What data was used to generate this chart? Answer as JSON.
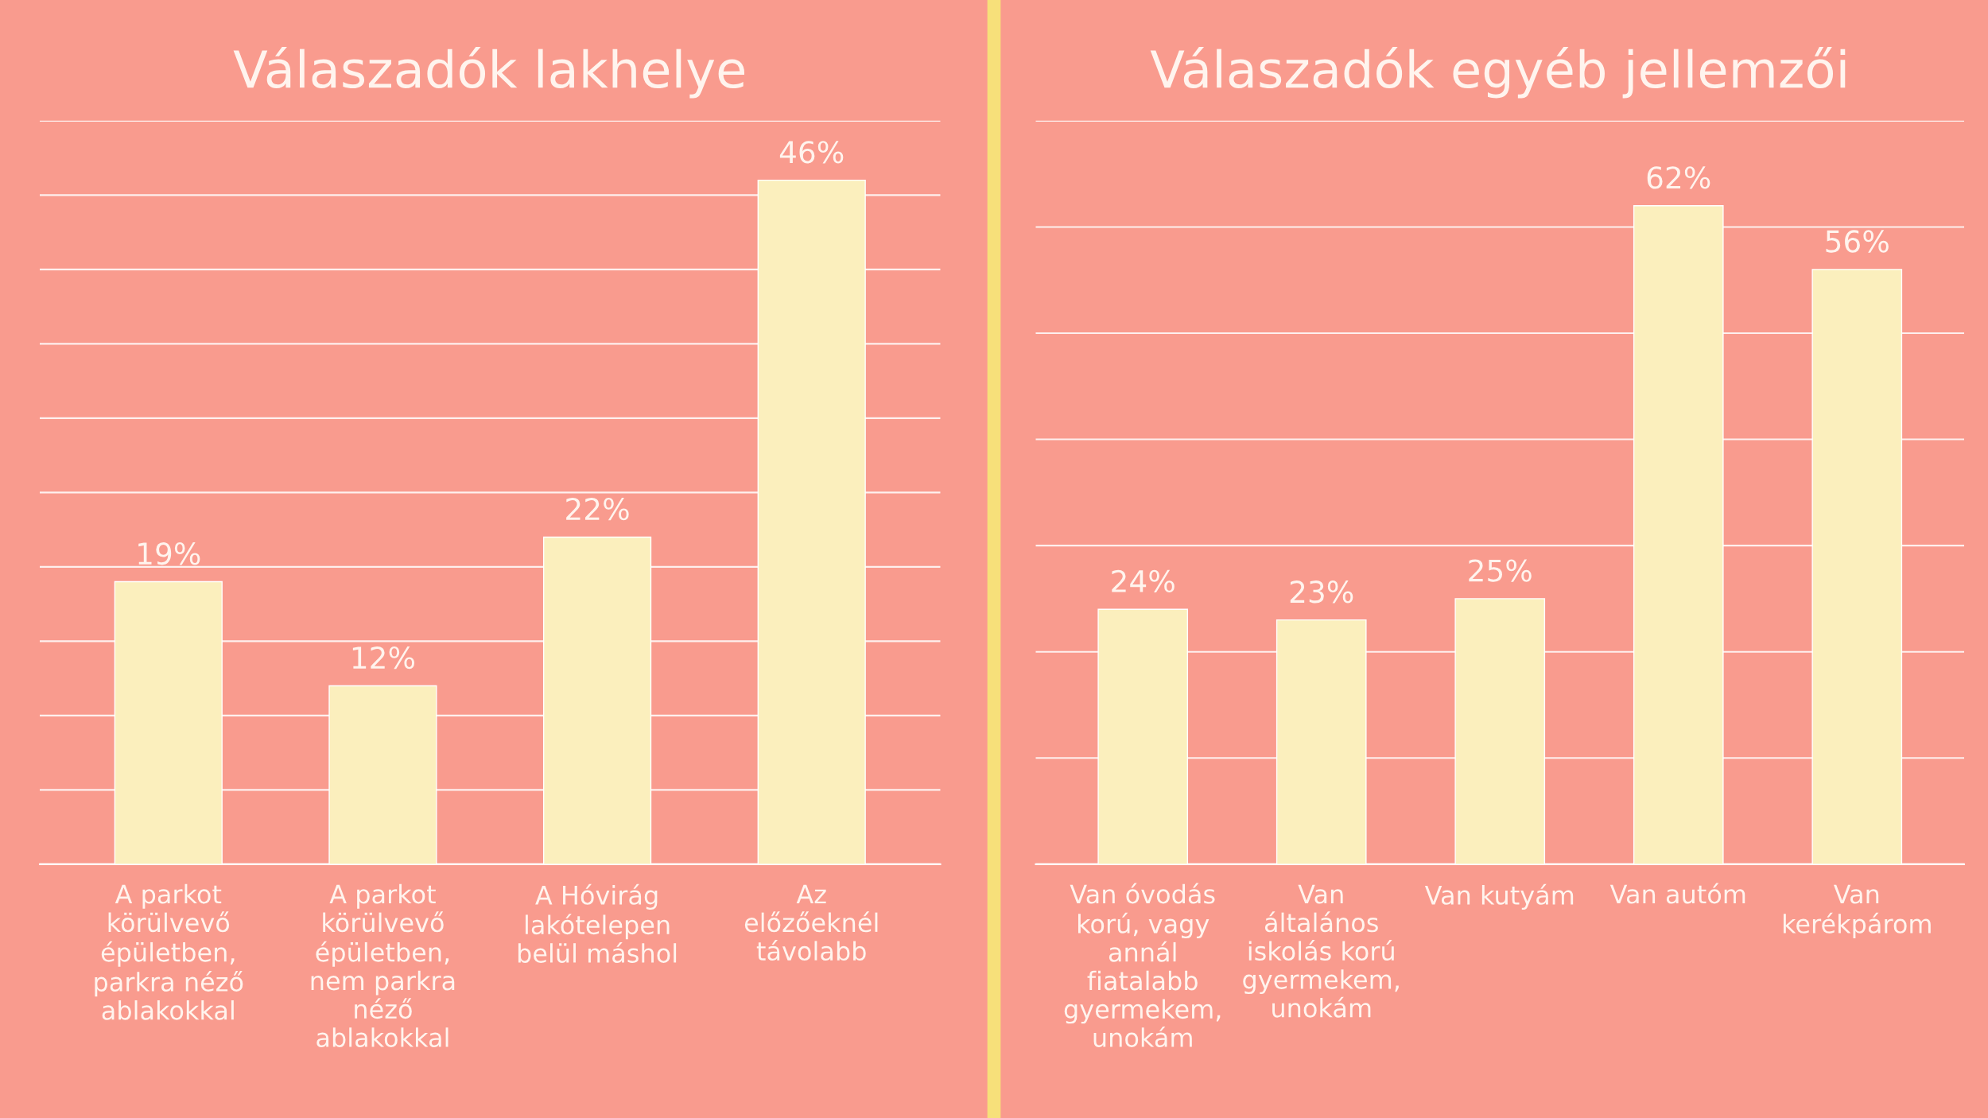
{
  "chart_data": [
    {
      "type": "bar",
      "title": "Válaszadók lakhelye",
      "categories": [
        "A parkot körülvevő épületben, parkra néző ablakokkal",
        "A parkot körülvevő épületben, nem parkra néző ablakokkal",
        "A Hóvirág lakótelepen belül máshol",
        "Az előzőeknél távolabb"
      ],
      "values": [
        19,
        12,
        22,
        46
      ],
      "value_labels": [
        "19%",
        "12%",
        "22%",
        "46%"
      ],
      "color": "#fbefbd",
      "ylim": [
        0,
        50
      ],
      "yticks": [
        {
          "value": 0,
          "label": null
        },
        {
          "value": 5,
          "label": null
        },
        {
          "value": 10,
          "label": null
        },
        {
          "value": 15,
          "label": null
        },
        {
          "value": 20,
          "label": null
        },
        {
          "value": 25,
          "label": null
        },
        {
          "value": 30,
          "label": null
        },
        {
          "value": 35,
          "label": null
        },
        {
          "value": 40,
          "label": null
        },
        {
          "value": 45,
          "label": null
        },
        {
          "value": 50,
          "label": null
        }
      ],
      "tick_labels": "x",
      "grid": "y",
      "legend": false
    },
    {
      "type": "bar",
      "title": "Válaszadók egyéb jellemzői",
      "categories": [
        "Van óvodás korú, vagy annál fiatalabb gyermekem, unokám",
        "Van általános iskolás korú gyermekem, unokám",
        "Van kutyám",
        "Van autóm",
        "Van kerékpárom"
      ],
      "values": [
        24,
        23,
        25,
        62,
        56
      ],
      "value_labels": [
        "24%",
        "23%",
        "25%",
        "62%",
        "56%"
      ],
      "color": "#fbefbd",
      "ylim": [
        0,
        70
      ],
      "yticks": [
        {
          "value": 0,
          "label": null
        },
        {
          "value": 10,
          "label": null
        },
        {
          "value": 20,
          "label": null
        },
        {
          "value": 30,
          "label": null
        },
        {
          "value": 40,
          "label": null
        },
        {
          "value": 50,
          "label": null
        },
        {
          "value": 60,
          "label": null
        },
        {
          "value": 70,
          "label": null
        }
      ],
      "tick_labels": "x",
      "grid": "y",
      "legend": false
    }
  ]
}
